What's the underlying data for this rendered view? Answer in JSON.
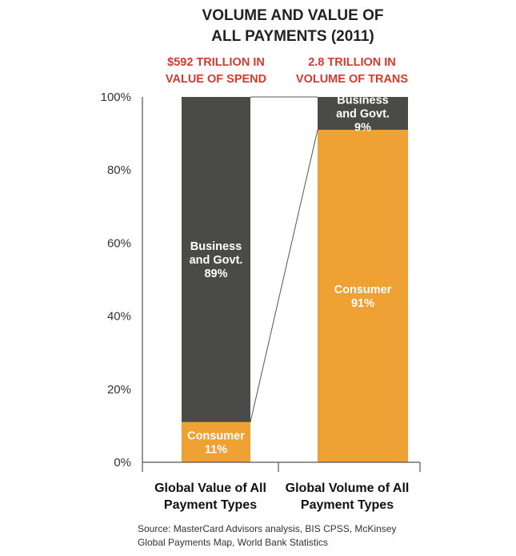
{
  "colors": {
    "business": "#4a4a48",
    "consumer": "#f0a133",
    "highlight": "#d63a2f",
    "axis": "#555555"
  },
  "chart_data": {
    "type": "bar",
    "stacked": true,
    "title": [
      "VOLUME AND VALUE OF",
      "ALL PAYMENTS (2011)"
    ],
    "column_headers": [
      [
        "$592 TRILLION IN",
        "VALUE OF SPEND"
      ],
      [
        "2.8 TRILLION IN",
        "VOLUME OF TRANS"
      ]
    ],
    "categories": [
      [
        "Global Value of All",
        "Payment Types"
      ],
      [
        "Global Volume of All",
        "Payment Types"
      ]
    ],
    "series": [
      {
        "name": "Consumer",
        "values": [
          11,
          91
        ],
        "labels": [
          [
            "Consumer",
            "11%"
          ],
          [
            "Consumer",
            "91%"
          ]
        ]
      },
      {
        "name": "Business and Govt.",
        "values": [
          89,
          9
        ],
        "labels": [
          [
            "Business",
            "and Govt.",
            "89%"
          ],
          [
            "Business",
            "and Govt.",
            "9%"
          ]
        ]
      }
    ],
    "yticks": [
      "0%",
      "20%",
      "40%",
      "60%",
      "80%",
      "100%"
    ],
    "ylim": [
      0,
      100
    ],
    "connector_lines": true,
    "grid": false,
    "legend": "none",
    "source": [
      "Source: MasterCard Advisors analysis, BIS CPSS, McKinsey",
      "Global Payments Map, World Bank Statistics"
    ]
  }
}
